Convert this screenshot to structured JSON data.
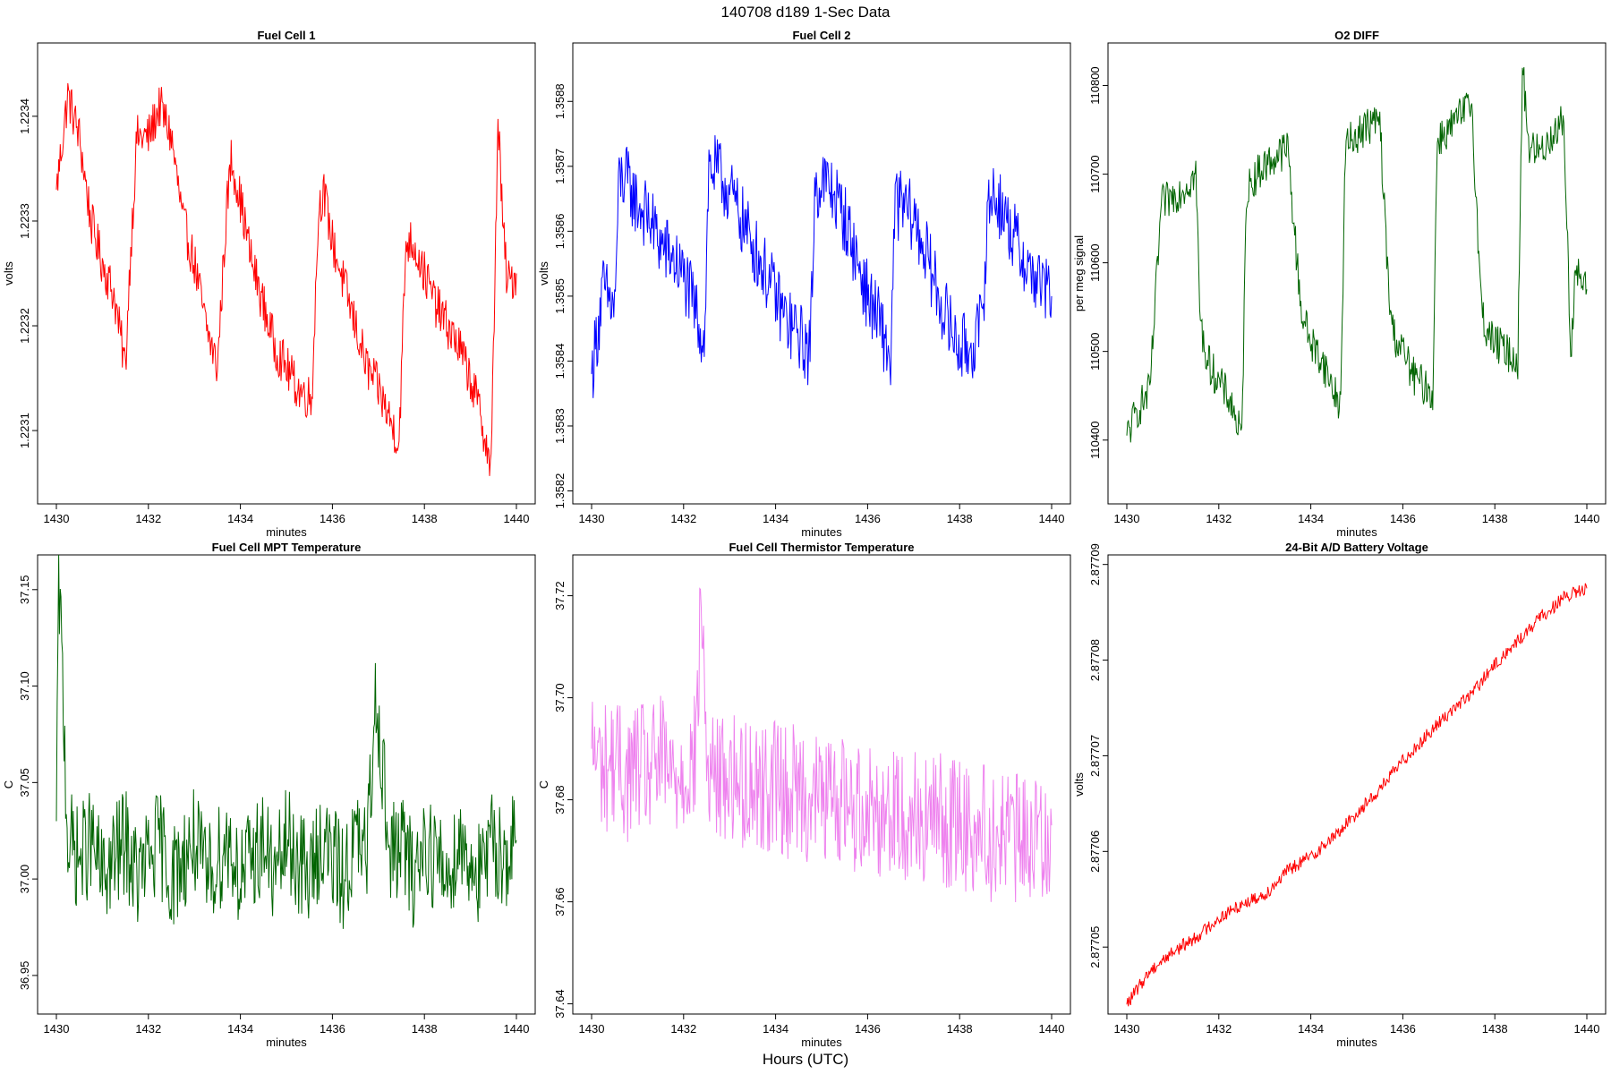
{
  "figure": {
    "title": "140708   d189   1-Sec Data",
    "xlabel": "Hours (UTC)"
  },
  "chart_data": [
    {
      "type": "line",
      "title": "Fuel Cell 1",
      "xlabel": "minutes",
      "ylabel": "volts",
      "color": "#ff0000",
      "xlim": [
        1430,
        1440
      ],
      "ylim": [
        1.22303,
        1.22347
      ],
      "xticks": [
        1430,
        1432,
        1434,
        1436,
        1438,
        1440
      ],
      "yticks": [
        "1.2231",
        "1.2232",
        "1.2233",
        "1.2234"
      ],
      "x": [
        1430.0,
        1430.25,
        1430.5,
        1430.75,
        1431.0,
        1431.25,
        1431.5,
        1431.6,
        1431.75,
        1432.0,
        1432.25,
        1432.5,
        1432.75,
        1433.0,
        1433.25,
        1433.5,
        1433.7,
        1433.8,
        1434.0,
        1434.25,
        1434.5,
        1434.75,
        1435.0,
        1435.25,
        1435.55,
        1435.7,
        1435.8,
        1436.0,
        1436.25,
        1436.5,
        1436.75,
        1437.0,
        1437.25,
        1437.45,
        1437.6,
        1437.75,
        1438.0,
        1438.25,
        1438.5,
        1438.75,
        1439.0,
        1439.25,
        1439.45,
        1439.6,
        1439.7,
        1439.8,
        1440.0
      ],
      "y": [
        1.22333,
        1.22342,
        1.22338,
        1.2233,
        1.22326,
        1.22323,
        1.22316,
        1.22326,
        1.22338,
        1.22338,
        1.22341,
        1.22338,
        1.2233,
        1.22326,
        1.2232,
        1.22316,
        1.22331,
        1.22336,
        1.22332,
        1.22326,
        1.22322,
        1.22318,
        1.22316,
        1.22314,
        1.22313,
        1.22331,
        1.22333,
        1.22328,
        1.22324,
        1.2232,
        1.22316,
        1.22314,
        1.22311,
        1.22309,
        1.22328,
        1.22328,
        1.22325,
        1.22322,
        1.2232,
        1.22318,
        1.22315,
        1.22311,
        1.22306,
        1.2234,
        1.2233,
        1.22324,
        1.22325
      ]
    },
    {
      "type": "line",
      "title": "Fuel Cell 2",
      "xlabel": "minutes",
      "ylabel": "volts",
      "color": "#0000ff",
      "xlim": [
        1430,
        1440
      ],
      "ylim": [
        1.35818,
        1.35889
      ],
      "xticks": [
        1430,
        1432,
        1434,
        1436,
        1438,
        1440
      ],
      "yticks": [
        "1.3582",
        "1.3583",
        "1.3584",
        "1.3585",
        "1.3586",
        "1.3587",
        "1.3588"
      ],
      "x": [
        1430.0,
        1430.25,
        1430.5,
        1430.6,
        1430.75,
        1431.0,
        1431.25,
        1431.5,
        1431.75,
        1432.0,
        1432.25,
        1432.45,
        1432.55,
        1432.75,
        1433.0,
        1433.25,
        1433.5,
        1433.75,
        1434.0,
        1434.25,
        1434.5,
        1434.75,
        1434.85,
        1435.0,
        1435.25,
        1435.5,
        1435.75,
        1436.0,
        1436.25,
        1436.5,
        1436.6,
        1436.75,
        1437.0,
        1437.25,
        1437.5,
        1437.75,
        1438.0,
        1438.25,
        1438.5,
        1438.6,
        1438.75,
        1439.0,
        1439.25,
        1439.5,
        1439.75,
        1440.0
      ],
      "y": [
        1.35838,
        1.35851,
        1.35848,
        1.35868,
        1.35868,
        1.35864,
        1.35862,
        1.35858,
        1.35856,
        1.35853,
        1.35848,
        1.35843,
        1.3587,
        1.35869,
        1.35866,
        1.35862,
        1.35858,
        1.35854,
        1.3585,
        1.35846,
        1.35844,
        1.35841,
        1.35866,
        1.35868,
        1.35866,
        1.35862,
        1.35856,
        1.3585,
        1.35846,
        1.3584,
        1.35864,
        1.35864,
        1.35862,
        1.35857,
        1.35851,
        1.35846,
        1.35842,
        1.35842,
        1.35846,
        1.35863,
        1.35866,
        1.35862,
        1.35858,
        1.35854,
        1.35852,
        1.3585
      ]
    },
    {
      "type": "line",
      "title": "O2 DIFF",
      "xlabel": "minutes",
      "ylabel": "per meg signal",
      "color": "#006400",
      "xlim": [
        1430,
        1440
      ],
      "ylim": [
        110328,
        110848
      ],
      "xticks": [
        1430,
        1432,
        1434,
        1436,
        1438,
        1440
      ],
      "yticks": [
        "110400",
        "110500",
        "110600",
        "110700",
        "110800"
      ],
      "x": [
        1430.0,
        1430.25,
        1430.5,
        1430.75,
        1431.0,
        1431.25,
        1431.5,
        1431.6,
        1431.75,
        1432.0,
        1432.25,
        1432.5,
        1432.6,
        1432.75,
        1433.0,
        1433.25,
        1433.5,
        1433.7,
        1433.8,
        1434.0,
        1434.25,
        1434.5,
        1434.65,
        1434.75,
        1435.0,
        1435.25,
        1435.5,
        1435.7,
        1435.8,
        1436.0,
        1436.25,
        1436.5,
        1436.65,
        1436.75,
        1437.0,
        1437.25,
        1437.5,
        1437.7,
        1437.8,
        1438.0,
        1438.25,
        1438.5,
        1438.6,
        1438.75,
        1439.0,
        1439.25,
        1439.5,
        1439.65,
        1439.75,
        1440.0
      ],
      "y": [
        110405,
        110435,
        110455,
        110665,
        110675,
        110685,
        110700,
        110530,
        110490,
        110465,
        110445,
        110400,
        110680,
        110695,
        110710,
        110720,
        110730,
        110600,
        110545,
        110510,
        110490,
        110455,
        110440,
        110730,
        110745,
        110755,
        110760,
        110560,
        110520,
        110500,
        110470,
        110460,
        110450,
        110740,
        110750,
        110765,
        110780,
        110555,
        110525,
        110510,
        110500,
        110490,
        110820,
        110730,
        110725,
        110745,
        110760,
        110500,
        110590,
        110570
      ]
    },
    {
      "type": "line",
      "title": "Fuel Cell MPT Temperature",
      "xlabel": "minutes",
      "ylabel": "C",
      "color": "#006400",
      "xlim": [
        1430,
        1440
      ],
      "ylim": [
        36.93,
        37.168
      ],
      "xticks": [
        1430,
        1432,
        1434,
        1436,
        1438,
        1440
      ],
      "yticks": [
        "36.95",
        "37.00",
        "37.05",
        "37.10",
        "37.15"
      ],
      "x": [
        1430.0,
        1430.05,
        1430.25,
        1430.5,
        1430.75,
        1431.0,
        1431.25,
        1431.5,
        1431.75,
        1432.0,
        1432.25,
        1432.5,
        1432.75,
        1433.0,
        1433.25,
        1433.5,
        1433.75,
        1434.0,
        1434.25,
        1434.5,
        1434.75,
        1435.0,
        1435.25,
        1435.5,
        1435.75,
        1436.0,
        1436.25,
        1436.5,
        1436.75,
        1436.95,
        1437.25,
        1437.5,
        1437.75,
        1438.0,
        1438.25,
        1438.5,
        1438.75,
        1439.0,
        1439.25,
        1439.5,
        1439.75,
        1440.0
      ],
      "y": [
        37.03,
        37.16,
        37.02,
        37.01,
        37.02,
        37.0,
        37.01,
        37.02,
        37.0,
        37.01,
        37.02,
        37.0,
        37.01,
        37.02,
        37.0,
        37.01,
        37.02,
        37.0,
        37.01,
        37.02,
        37.0,
        37.02,
        37.01,
        37.0,
        37.02,
        37.01,
        37.0,
        37.02,
        37.01,
        37.1,
        37.01,
        37.02,
        37.0,
        37.02,
        37.01,
        37.0,
        37.02,
        37.01,
        37.0,
        37.02,
        37.01,
        37.02
      ]
    },
    {
      "type": "line",
      "title": "Fuel Cell Thermistor Temperature",
      "xlabel": "minutes",
      "ylabel": "C",
      "color": "#ee82ee",
      "xlim": [
        1430,
        1440
      ],
      "ylim": [
        37.638,
        37.728
      ],
      "xticks": [
        1430,
        1432,
        1434,
        1436,
        1438,
        1440
      ],
      "yticks": [
        "37.64",
        "37.66",
        "37.68",
        "37.70",
        "37.72"
      ],
      "x": [
        1430.0,
        1430.25,
        1430.5,
        1430.75,
        1431.0,
        1431.25,
        1431.5,
        1431.75,
        1432.0,
        1432.25,
        1432.4,
        1432.5,
        1432.75,
        1433.0,
        1433.25,
        1433.5,
        1433.75,
        1434.0,
        1434.25,
        1434.5,
        1434.75,
        1435.0,
        1435.25,
        1435.5,
        1435.75,
        1436.0,
        1436.25,
        1436.5,
        1436.75,
        1437.0,
        1437.25,
        1437.5,
        1437.75,
        1438.0,
        1438.25,
        1438.5,
        1438.75,
        1439.0,
        1439.25,
        1439.5,
        1439.75,
        1440.0
      ],
      "y": [
        37.69,
        37.686,
        37.688,
        37.684,
        37.687,
        37.685,
        37.688,
        37.684,
        37.686,
        37.688,
        37.72,
        37.686,
        37.684,
        37.685,
        37.683,
        37.684,
        37.682,
        37.684,
        37.681,
        37.683,
        37.68,
        37.681,
        37.679,
        37.681,
        37.678,
        37.68,
        37.677,
        37.679,
        37.676,
        37.678,
        37.675,
        37.677,
        37.675,
        37.676,
        37.674,
        37.675,
        37.672,
        37.674,
        37.672,
        37.673,
        37.672,
        37.675
      ]
    },
    {
      "type": "line",
      "title": "24-Bit A/D Battery Voltage",
      "xlabel": "minutes",
      "ylabel": "volts",
      "color": "#ff0000",
      "xlim": [
        1430,
        1440
      ],
      "ylim": [
        2.877043,
        2.877091
      ],
      "xticks": [
        1430,
        1432,
        1434,
        1436,
        1438,
        1440
      ],
      "yticks": [
        "2.87705",
        "2.87706",
        "2.87707",
        "2.87708",
        "2.87709"
      ],
      "x": [
        1430.0,
        1430.5,
        1431.0,
        1431.5,
        1432.0,
        1432.5,
        1433.0,
        1433.5,
        1434.0,
        1434.5,
        1435.0,
        1435.5,
        1436.0,
        1436.5,
        1437.0,
        1437.5,
        1438.0,
        1438.5,
        1439.0,
        1439.5,
        1440.0
      ],
      "y": [
        2.877044,
        2.8770475,
        2.8770495,
        2.877051,
        2.877053,
        2.8770545,
        2.8770555,
        2.877058,
        2.8770595,
        2.8770615,
        2.877064,
        2.8770665,
        2.8770695,
        2.877072,
        2.8770745,
        2.8770765,
        2.8770795,
        2.877082,
        2.8770845,
        2.8770865,
        2.8770875
      ]
    }
  ]
}
